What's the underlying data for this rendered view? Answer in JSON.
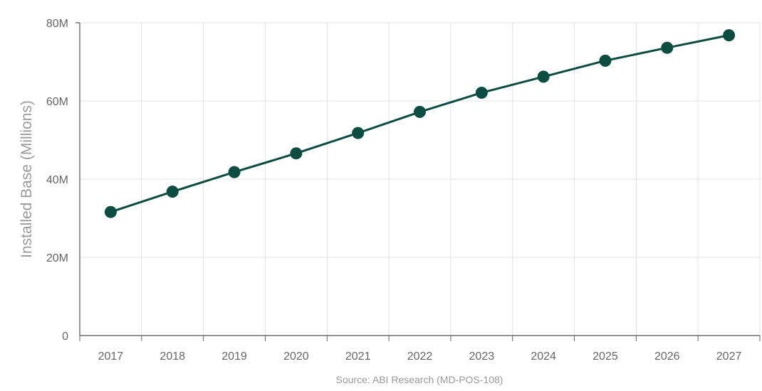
{
  "chart_data": {
    "type": "line",
    "title": "",
    "xlabel": "",
    "ylabel": "Installed Base (Millions)",
    "categories": [
      "2017",
      "2018",
      "2019",
      "2020",
      "2021",
      "2022",
      "2023",
      "2024",
      "2025",
      "2026",
      "2027"
    ],
    "series": [
      {
        "values": [
          31.6,
          36.8,
          41.8,
          46.6,
          51.8,
          57.2,
          62.1,
          66.2,
          70.3,
          73.6,
          76.8
        ],
        "color": "#0b4d40"
      }
    ],
    "ylim": [
      0,
      80
    ],
    "yticks": [
      0,
      20,
      40,
      60,
      80
    ],
    "ytick_labels": [
      "0",
      "20M",
      "40M",
      "60M",
      "80M"
    ],
    "grid": true,
    "legend": "none",
    "source": "Source: ABI Research (MD-POS-108)"
  }
}
